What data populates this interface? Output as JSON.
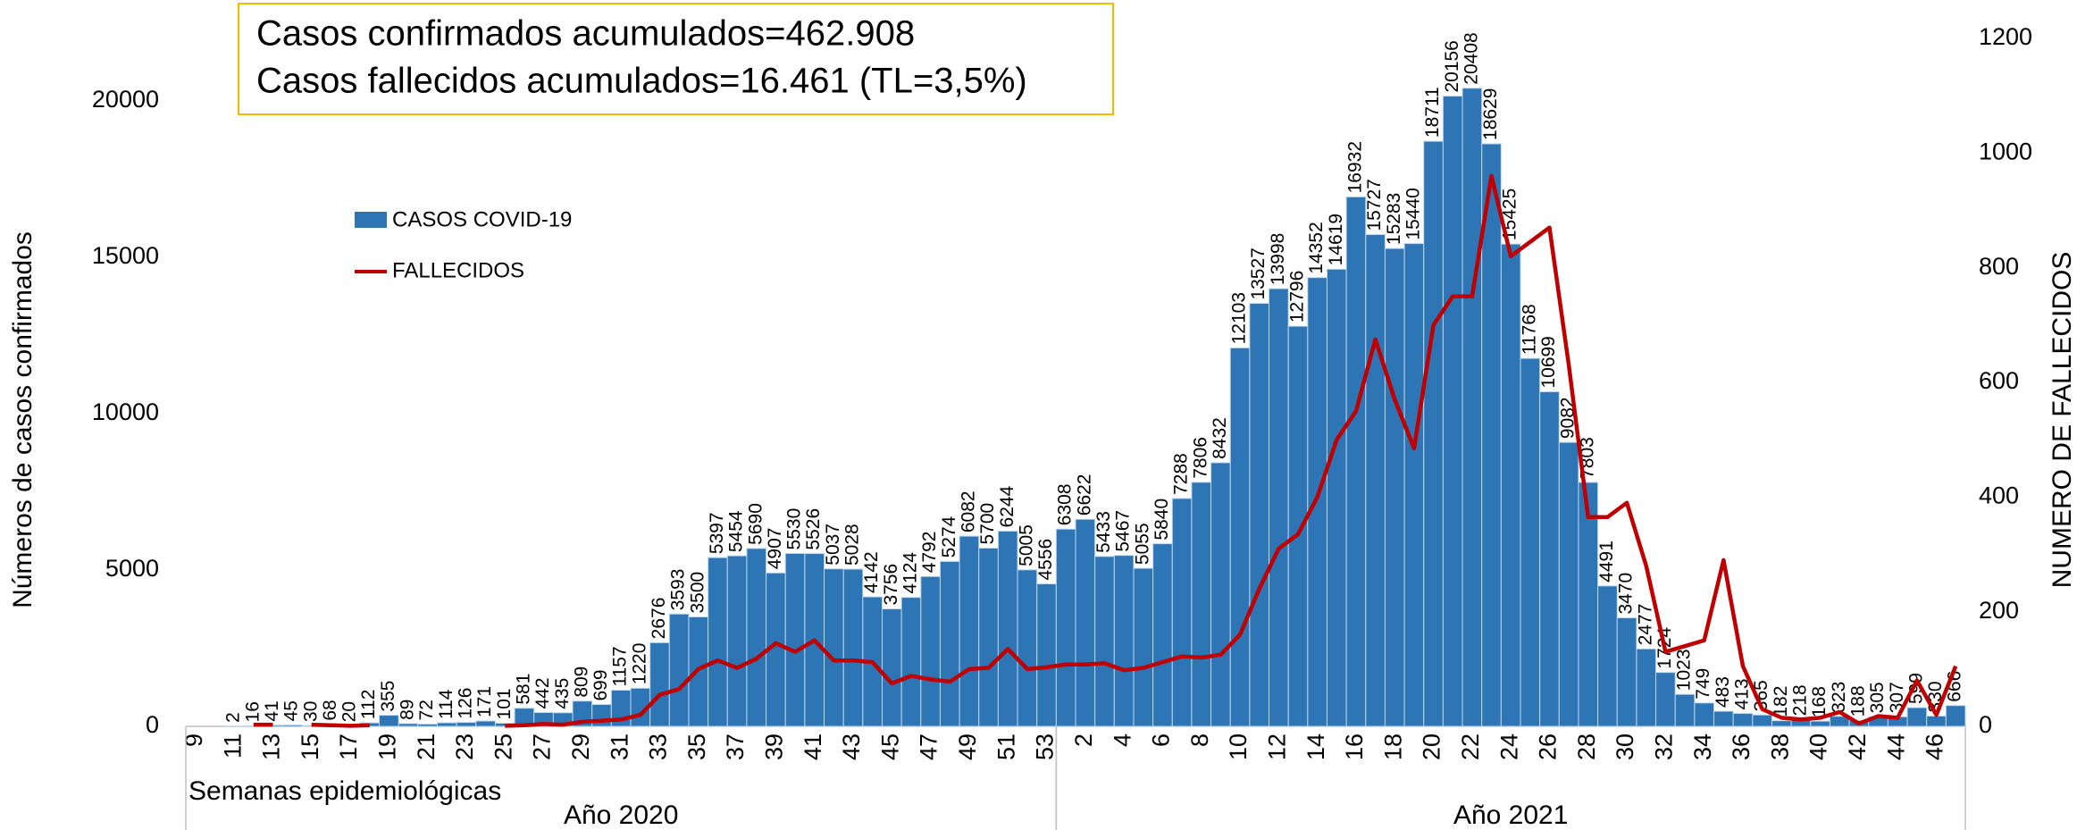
{
  "chart_data": {
    "type": "bar",
    "annotations": [
      "Casos confirmados acumulados=462.908",
      "Casos fallecidos acumulados=16.461 (TL=3,5%)"
    ],
    "xlabel": "Semanas epidemiológicas",
    "ylabel": "Números de casos confirmados",
    "y2label": "NUMERO DE FALLECIDOS",
    "groups": [
      {
        "label": "Año 2020",
        "count": 45
      },
      {
        "label": "Año 2021",
        "count": 47
      }
    ],
    "categories": [
      "9",
      null,
      "11",
      null,
      "13",
      null,
      "15",
      null,
      "17",
      null,
      "19",
      null,
      "21",
      null,
      "23",
      null,
      "25",
      null,
      "27",
      null,
      "29",
      null,
      "31",
      null,
      "33",
      null,
      "35",
      null,
      "37",
      null,
      "39",
      null,
      "41",
      null,
      "43",
      null,
      "45",
      null,
      "47",
      null,
      "49",
      null,
      "51",
      null,
      "53",
      null,
      "2",
      null,
      "4",
      null,
      "6",
      null,
      "8",
      null,
      "10",
      null,
      "12",
      null,
      "14",
      null,
      "16",
      null,
      "18",
      null,
      "20",
      null,
      "22",
      null,
      "24",
      null,
      "26",
      null,
      "28",
      null,
      "30",
      null,
      "32",
      null,
      "34",
      null,
      "36",
      null,
      "38",
      null,
      "40",
      null,
      "42",
      null,
      "44",
      null,
      "46",
      null
    ],
    "series": [
      {
        "name": "CASOS COVID-19",
        "type": "bar",
        "color": "#2e75b6",
        "values": [
          null,
          null,
          2,
          16,
          41,
          45,
          30,
          68,
          20,
          112,
          355,
          89,
          72,
          114,
          126,
          171,
          101,
          581,
          442,
          435,
          809,
          699,
          1157,
          1220,
          2676,
          3593,
          3500,
          5397,
          5454,
          5690,
          4907,
          5530,
          5526,
          5037,
          5028,
          4142,
          3756,
          4124,
          4792,
          5274,
          6082,
          5700,
          6244,
          5005,
          4556,
          6308,
          6622,
          5433,
          5467,
          5055,
          5840,
          7288,
          7806,
          8432,
          12103,
          13527,
          13998,
          12796,
          14352,
          14619,
          16932,
          15727,
          15283,
          15440,
          18711,
          20156,
          20408,
          18629,
          15425,
          11768,
          10699,
          9082,
          7803,
          4491,
          3470,
          2477,
          1724,
          1023,
          749,
          483,
          413,
          365,
          182,
          218,
          168,
          323,
          188,
          305,
          307,
          599,
          330,
          666
        ]
      },
      {
        "name": "FALLECIDOS",
        "type": "line",
        "axis": "y2",
        "color": "#c00000",
        "values": [
          null,
          null,
          null,
          3,
          3,
          null,
          3,
          2,
          1,
          2,
          null,
          null,
          null,
          null,
          null,
          null,
          1,
          2,
          4,
          3,
          8,
          10,
          12,
          20,
          55,
          65,
          100,
          115,
          102,
          118,
          145,
          130,
          150,
          115,
          115,
          112,
          75,
          88,
          82,
          78,
          100,
          102,
          135,
          100,
          103,
          108,
          108,
          110,
          98,
          102,
          112,
          122,
          120,
          125,
          160,
          240,
          310,
          335,
          400,
          500,
          550,
          675,
          570,
          485,
          700,
          750,
          750,
          960,
          820,
          845,
          870,
          630,
          365,
          365,
          390,
          280,
          130,
          140,
          150,
          290,
          105,
          30,
          15,
          12,
          15,
          25,
          5,
          18,
          15,
          80,
          20,
          105
        ]
      }
    ],
    "ylim": [
      0,
      22000
    ],
    "yticks": [
      0,
      5000,
      10000,
      15000,
      20000
    ],
    "y2lim": [
      0,
      1200
    ],
    "y2ticks": [
      0,
      200,
      400,
      600,
      800,
      1000,
      1200
    ]
  }
}
